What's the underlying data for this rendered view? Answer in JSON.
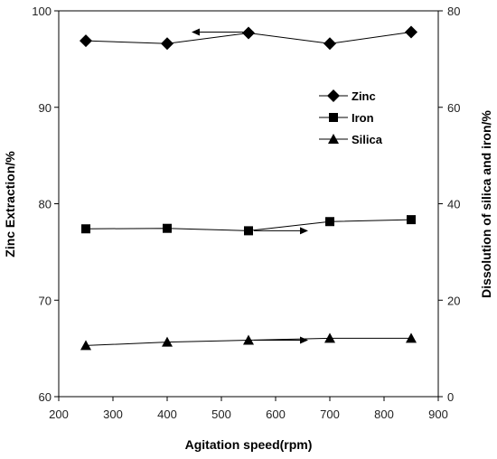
{
  "chart_data": {
    "type": "line",
    "title": "",
    "xlabel": "Agitation speed(rpm)",
    "ylabel_left": "Zinc Extraction/%",
    "ylabel_right": "Dissolution of silica and iron/%",
    "xlim": [
      200,
      900
    ],
    "ylim_left": [
      60,
      100
    ],
    "ylim_right": [
      0,
      80
    ],
    "x_ticks": [
      "200",
      "300",
      "400",
      "500",
      "600",
      "700",
      "800",
      "900"
    ],
    "y_left_ticks": [
      "60",
      "70",
      "80",
      "90",
      "100"
    ],
    "y_right_ticks": [
      "0",
      "20",
      "40",
      "60",
      "80"
    ],
    "grid": false,
    "legend_position": "upper-right inside",
    "x": [
      250,
      400,
      550,
      700,
      850
    ],
    "series": [
      {
        "name": "Zinc",
        "axis": "left",
        "marker": "diamond",
        "values": [
          96.9,
          96.6,
          97.7,
          96.6,
          97.8
        ]
      },
      {
        "name": "Iron",
        "axis": "right",
        "marker": "square",
        "values": [
          34.8,
          34.9,
          34.4,
          36.3,
          36.7
        ]
      },
      {
        "name": "Silica",
        "axis": "right",
        "marker": "triangle",
        "values": [
          10.6,
          11.3,
          11.7,
          12.1,
          12.1
        ]
      }
    ],
    "annotations": [
      {
        "type": "arrow",
        "direction": "left",
        "points_to_axis": "left",
        "near_series": "Zinc"
      },
      {
        "type": "arrow",
        "direction": "right",
        "points_to_axis": "right",
        "near_series": "Iron"
      },
      {
        "type": "arrow",
        "direction": "right",
        "points_to_axis": "right",
        "near_series": "Silica"
      }
    ],
    "colors": {
      "line": "#000000",
      "marker": "#000000"
    }
  }
}
